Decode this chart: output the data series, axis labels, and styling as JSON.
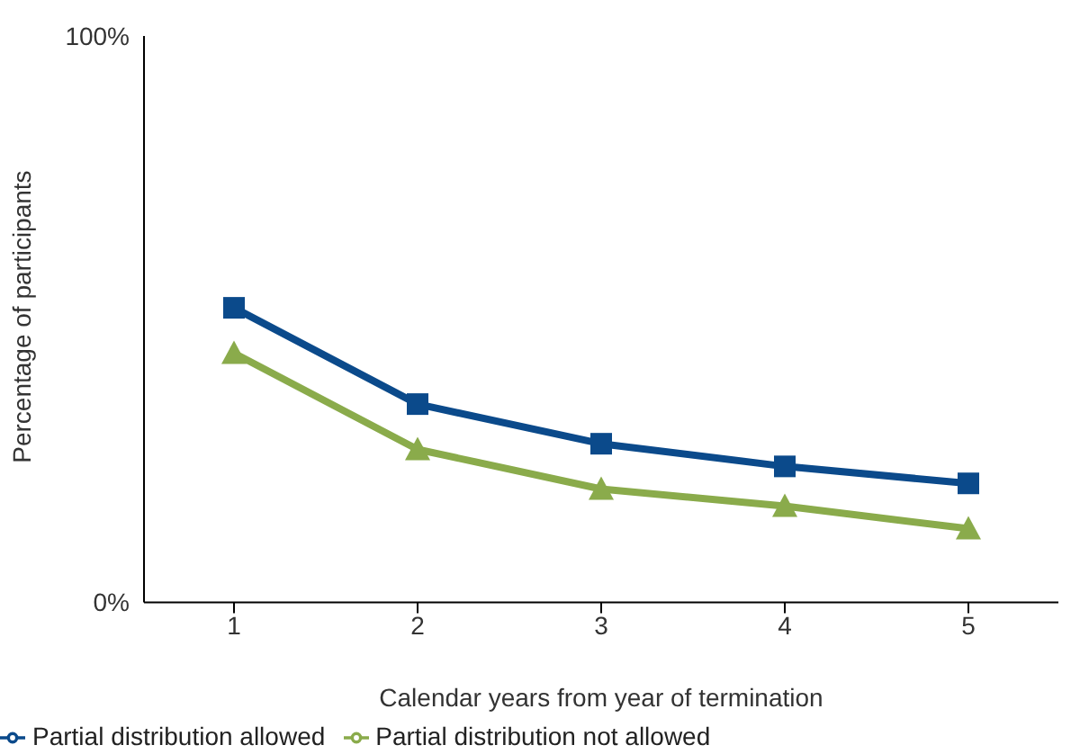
{
  "chart_data": {
    "type": "line",
    "xlabel": "Calendar years from year of termination",
    "ylabel": "Percentage of participants",
    "categories": [
      "1",
      "2",
      "3",
      "4",
      "5"
    ],
    "series": [
      {
        "name": "Partial distribution allowed",
        "color": "#0b4a8b",
        "marker": "square",
        "values": [
          52,
          35,
          28,
          24,
          21
        ]
      },
      {
        "name": "Partial distribution not allowed",
        "color": "#8aab4b",
        "marker": "triangle",
        "values": [
          44,
          27,
          20,
          17,
          13
        ]
      }
    ],
    "ylim": [
      0,
      100
    ],
    "yticks": [
      {
        "value": 0,
        "label": "0%"
      },
      {
        "value": 100,
        "label": "100%"
      }
    ],
    "grid": false,
    "legend": "bottom left",
    "line_style": "solid"
  }
}
